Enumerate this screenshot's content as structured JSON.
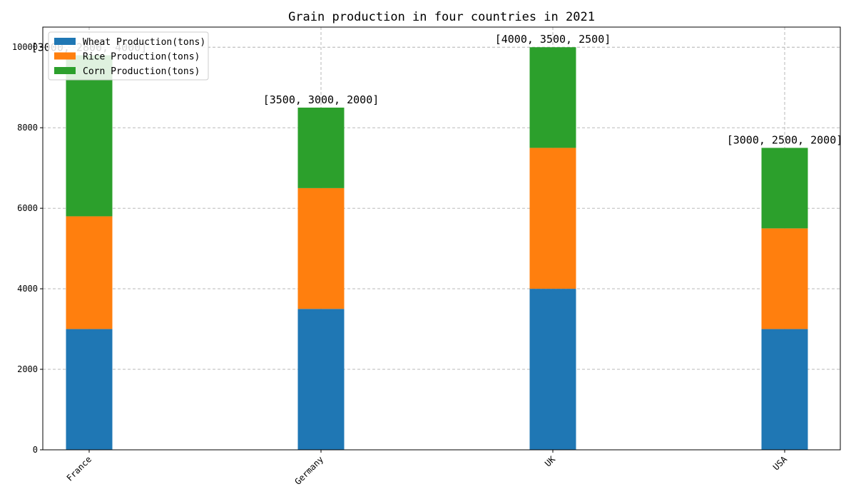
{
  "chart_data": {
    "type": "bar",
    "stacked": true,
    "title": "Grain production in four countries in 2021",
    "xlabel": "",
    "ylabel": "",
    "categories": [
      "France",
      "Germany",
      "UK",
      "USA"
    ],
    "series": [
      {
        "name": "Wheat Production(tons)",
        "color": "#1f77b4",
        "values": [
          3000,
          3500,
          4000,
          3000
        ]
      },
      {
        "name": "Rice Production(tons)",
        "color": "#ff7f0e",
        "values": [
          2800,
          3000,
          3500,
          2500
        ]
      },
      {
        "name": "Corn Production(tons)",
        "color": "#2ca02c",
        "values": [
          4000,
          2000,
          2500,
          2000
        ]
      }
    ],
    "bar_labels": [
      "[3000, 2800, 4000]",
      "[3500, 3000, 2000]",
      "[4000, 3500, 2500]",
      "[3000, 2500, 2000]"
    ],
    "ylim": [
      0,
      10500
    ],
    "yticks": [
      0,
      2000,
      4000,
      6000,
      8000,
      10000
    ],
    "grid": true,
    "legend_position": "top-left",
    "xtick_rotation": 45
  }
}
